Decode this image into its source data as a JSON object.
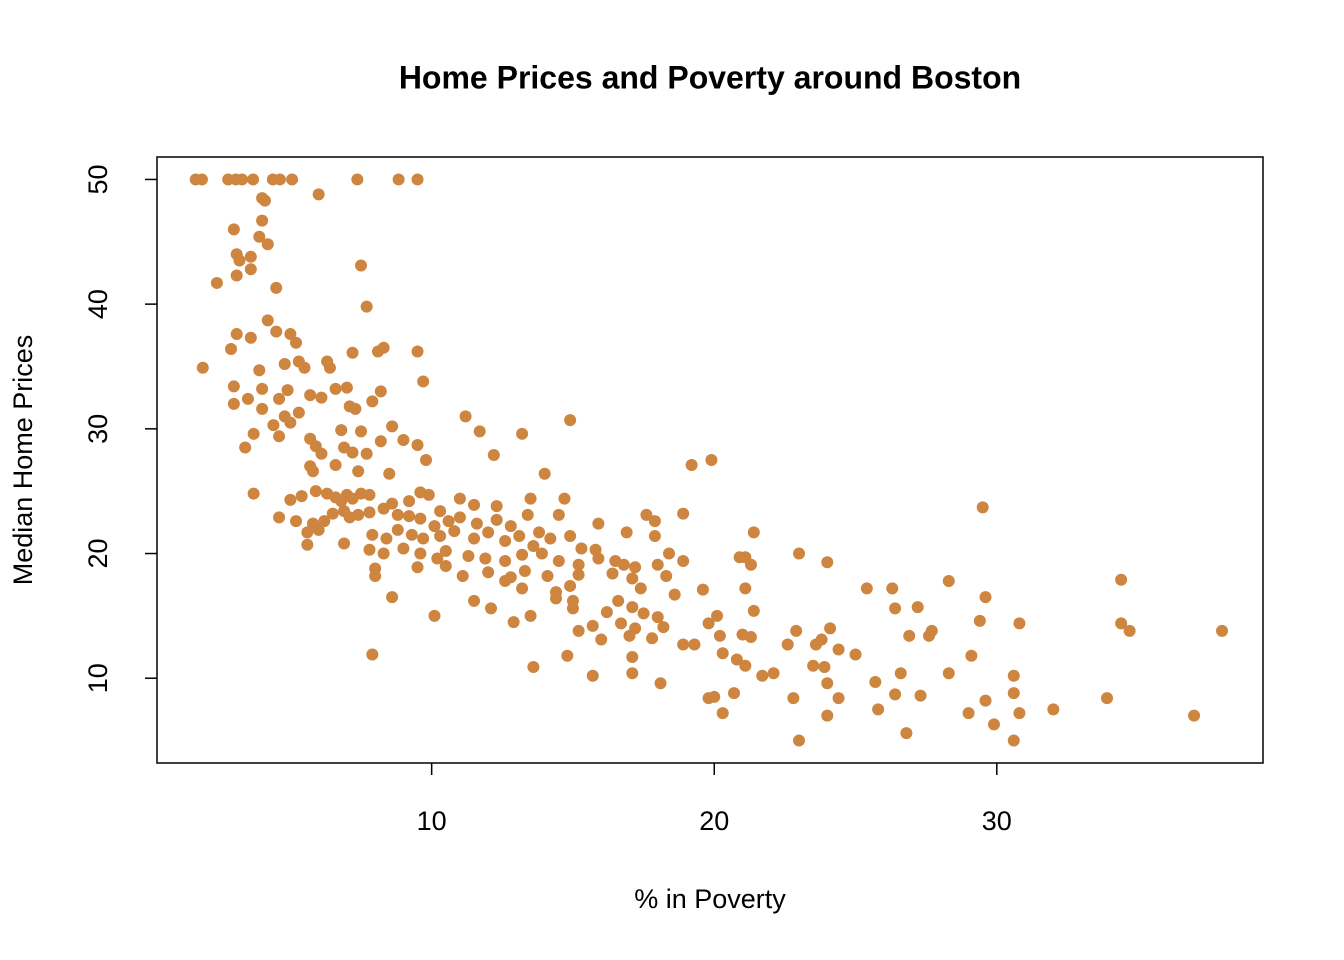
{
  "chart_data": {
    "type": "scatter",
    "title": "Home Prices and Poverty around Boston",
    "x_label": "% in Poverty",
    "y_label": "Median Home Prices",
    "color": "#cd853f",
    "xlim": [
      0.28,
      39.42
    ],
    "ylim": [
      3.2,
      51.8
    ],
    "xticks": [
      10,
      20,
      30
    ],
    "yticks": [
      10,
      20,
      30,
      40,
      50
    ],
    "x": [
      1.65,
      1.87,
      2.8,
      3.07,
      3.29,
      3.68,
      4.38,
      4.63,
      5.06,
      7.37,
      8.83,
      9.5,
      6.0,
      4.0,
      4.1,
      4.0,
      3.0,
      3.9,
      4.2,
      3.1,
      3.2,
      3.6,
      3.6,
      3.1,
      2.4,
      7.5,
      4.5,
      7.7,
      4.2,
      4.5,
      3.1,
      3.6,
      5.0,
      5.2,
      2.9,
      7.2,
      8.3,
      8.1,
      9.5,
      1.9,
      5.3,
      4.8,
      6.4,
      6.3,
      3.9,
      5.5,
      3.0,
      4.0,
      4.9,
      6.6,
      7.0,
      8.2,
      9.7,
      3.5,
      3.0,
      4.6,
      5.7,
      6.1,
      7.9,
      7.3,
      7.1,
      4.0,
      5.3,
      4.8,
      5.0,
      4.4,
      11.2,
      14.9,
      3.7,
      4.6,
      5.7,
      6.8,
      7.5,
      8.2,
      8.6,
      9.0,
      13.2,
      11.7,
      3.4,
      5.9,
      6.9,
      7.2,
      6.1,
      7.7,
      9.5,
      9.8,
      12.2,
      19.2,
      19.9,
      5.8,
      7.4,
      8.5,
      14.0,
      5.7,
      6.6,
      3.7,
      5.0,
      5.4,
      5.9,
      6.3,
      6.6,
      6.8,
      7.0,
      7.2,
      7.5,
      7.8,
      8.6,
      9.2,
      9.6,
      9.9,
      10.3,
      11.0,
      11.5,
      12.3,
      13.5,
      14.7,
      4.6,
      5.2,
      5.8,
      6.2,
      6.5,
      6.9,
      7.1,
      7.4,
      7.8,
      8.3,
      8.8,
      9.2,
      9.6,
      10.1,
      10.6,
      11.0,
      11.6,
      12.3,
      12.8,
      13.4,
      13.8,
      14.5,
      15.9,
      16.9,
      17.6,
      18.9,
      17.9,
      5.6,
      6.0,
      5.6,
      6.9,
      7.9,
      8.4,
      8.8,
      9.3,
      9.7,
      10.3,
      10.8,
      11.5,
      12.0,
      12.6,
      13.1,
      13.6,
      14.2,
      14.9,
      15.3,
      15.8,
      17.9,
      18.4,
      7.8,
      8.3,
      9.0,
      9.6,
      10.2,
      10.5,
      11.3,
      11.9,
      12.6,
      13.2,
      13.9,
      14.5,
      15.2,
      15.9,
      16.5,
      16.8,
      17.2,
      18.0,
      18.9,
      8.0,
      9.5,
      10.5,
      11.1,
      12.0,
      12.8,
      13.3,
      14.1,
      15.2,
      16.4,
      17.1,
      18.3,
      8.0,
      12.6,
      13.2,
      14.4,
      14.9,
      15.0,
      16.6,
      17.4,
      18.6,
      19.6,
      21.1,
      25.4,
      26.3,
      28.3,
      34.4,
      8.6,
      11.5,
      12.1,
      14.4,
      15.0,
      16.2,
      17.1,
      17.5,
      18.0,
      20.1,
      21.4,
      26.4,
      27.2,
      29.6,
      10.1,
      12.9,
      13.5,
      15.7,
      16.7,
      17.2,
      18.2,
      19.8,
      21.0,
      22.9,
      24.1,
      27.7,
      29.4,
      30.8,
      34.4,
      34.7,
      37.97,
      15.2,
      16.0,
      17.0,
      17.8,
      18.9,
      19.3,
      20.2,
      21.3,
      22.6,
      23.6,
      23.8,
      24.4,
      25.0,
      26.9,
      27.6,
      29.1,
      14.8,
      17.1,
      20.3,
      20.8,
      21.1,
      21.7,
      22.1,
      23.5,
      23.9,
      7.9,
      13.6,
      15.7,
      17.1,
      26.6,
      28.3,
      30.6,
      24.0,
      18.1,
      25.7,
      19.8,
      20.0,
      20.7,
      22.8,
      24.4,
      26.4,
      27.3,
      29.6,
      30.6,
      33.9,
      20.3,
      24.0,
      25.8,
      29.0,
      29.9,
      30.8,
      32.0,
      36.98,
      26.8,
      23.0,
      30.6,
      29.5,
      23.0,
      24.0,
      21.4,
      21.1,
      21.3,
      20.9
    ],
    "y": [
      50,
      50,
      50,
      50,
      50,
      50,
      50,
      50,
      50,
      50,
      50,
      50,
      48.8,
      48.5,
      48.3,
      46.7,
      46,
      45.4,
      44.8,
      44,
      43.5,
      43.8,
      42.8,
      42.3,
      41.7,
      43.1,
      41.3,
      39.8,
      38.7,
      37.8,
      37.6,
      37.3,
      37.6,
      36.9,
      36.4,
      36.1,
      36.5,
      36.2,
      36.2,
      34.9,
      35.4,
      35.2,
      34.9,
      35.4,
      34.7,
      34.9,
      33.4,
      33.2,
      33.1,
      33.2,
      33.3,
      33.0,
      33.8,
      32.4,
      32.0,
      32.4,
      32.7,
      32.5,
      32.2,
      31.6,
      31.8,
      31.6,
      31.3,
      31.0,
      30.5,
      30.3,
      31.0,
      30.7,
      29.6,
      29.4,
      29.2,
      29.9,
      29.8,
      29.0,
      30.2,
      29.1,
      29.6,
      29.8,
      28.5,
      28.6,
      28.5,
      28.1,
      28.0,
      28.0,
      28.7,
      27.5,
      27.9,
      27.1,
      27.5,
      26.6,
      26.6,
      26.4,
      26.4,
      27.0,
      27.1,
      24.8,
      24.3,
      24.6,
      25.0,
      24.8,
      24.5,
      24.2,
      24.7,
      24.4,
      24.8,
      24.7,
      24.0,
      24.2,
      24.9,
      24.7,
      23.4,
      24.4,
      23.9,
      23.8,
      24.4,
      24.4,
      22.9,
      22.6,
      22.4,
      22.6,
      23.2,
      23.4,
      22.9,
      23.1,
      23.3,
      23.6,
      23.1,
      23.0,
      22.8,
      22.2,
      22.6,
      22.9,
      22.4,
      22.7,
      22.2,
      23.1,
      21.7,
      23.1,
      22.4,
      21.7,
      23.1,
      23.2,
      22.6,
      21.7,
      21.9,
      20.7,
      20.8,
      21.5,
      21.2,
      21.9,
      21.5,
      21.2,
      21.4,
      21.8,
      21.2,
      21.7,
      21.0,
      21.4,
      20.6,
      21.2,
      21.4,
      20.4,
      20.3,
      21.4,
      20.0,
      20.3,
      20.0,
      20.4,
      20.0,
      19.6,
      20.2,
      19.8,
      19.6,
      19.4,
      19.9,
      20.0,
      19.4,
      19.1,
      19.6,
      19.4,
      19.1,
      18.9,
      19.1,
      19.4,
      18.8,
      18.9,
      19.0,
      18.2,
      18.5,
      18.1,
      18.6,
      18.2,
      18.3,
      18.4,
      18.0,
      18.2,
      18.2,
      17.8,
      17.2,
      16.9,
      17.4,
      16.2,
      16.2,
      17.2,
      16.7,
      17.1,
      17.2,
      17.2,
      17.2,
      17.8,
      17.9,
      16.5,
      16.2,
      15.6,
      16.4,
      15.6,
      15.3,
      15.7,
      15.2,
      14.9,
      15.0,
      15.4,
      15.6,
      15.7,
      16.5,
      15.0,
      14.5,
      15.0,
      14.2,
      14.4,
      14.0,
      14.1,
      14.4,
      13.5,
      13.8,
      14.0,
      13.8,
      14.6,
      14.4,
      14.4,
      13.8,
      13.8,
      13.8,
      13.1,
      13.4,
      13.2,
      12.7,
      12.7,
      13.4,
      13.3,
      12.7,
      12.7,
      13.1,
      12.3,
      11.9,
      13.4,
      13.4,
      11.8,
      11.8,
      11.7,
      12.0,
      11.5,
      11.0,
      10.2,
      10.4,
      11.0,
      10.9,
      11.9,
      10.9,
      10.2,
      10.4,
      10.4,
      10.4,
      10.2,
      9.6,
      9.6,
      9.7,
      8.4,
      8.5,
      8.8,
      8.4,
      8.4,
      8.7,
      8.6,
      8.2,
      8.8,
      8.4,
      7.2,
      7.0,
      7.5,
      7.2,
      6.3,
      7.2,
      7.5,
      7.0,
      5.6,
      5.0,
      5.0,
      23.7,
      20.0,
      19.3,
      21.7,
      19.7,
      19.1,
      19.7
    ]
  }
}
